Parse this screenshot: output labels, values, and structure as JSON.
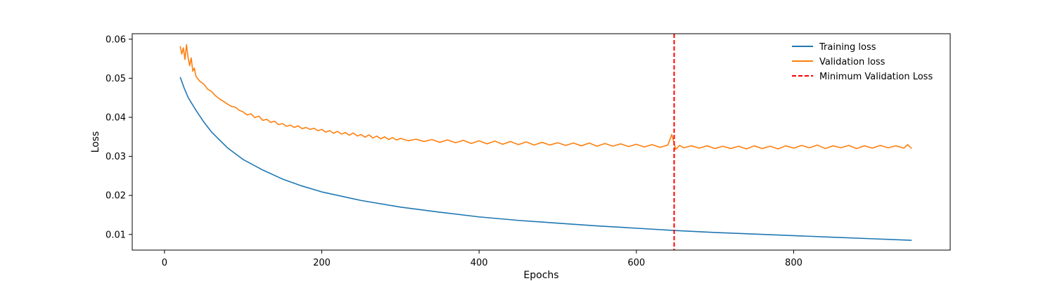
{
  "chart_data": {
    "type": "line",
    "title": "",
    "xlabel": "Epochs",
    "ylabel": "Loss",
    "xlim": [
      -41,
      999
    ],
    "ylim": [
      0.006,
      0.0614
    ],
    "xticks": [
      0,
      200,
      400,
      600,
      800
    ],
    "yticks": [
      0.01,
      0.02,
      0.03,
      0.04,
      0.05,
      0.06
    ],
    "ytick_labels": [
      "0.01",
      "0.02",
      "0.03",
      "0.04",
      "0.05",
      "0.06"
    ],
    "legend_position": "top-right",
    "series": [
      {
        "name": "Training loss",
        "color": "#1f77b4",
        "style": "solid",
        "x": [
          20,
          25,
          30,
          40,
          50,
          60,
          80,
          100,
          125,
          150,
          175,
          200,
          250,
          300,
          350,
          400,
          450,
          500,
          550,
          600,
          650,
          700,
          750,
          800,
          850,
          900,
          950
        ],
        "y": [
          0.0503,
          0.0475,
          0.0451,
          0.0418,
          0.0388,
          0.0362,
          0.0322,
          0.0292,
          0.0265,
          0.0242,
          0.0224,
          0.0209,
          0.0187,
          0.017,
          0.0157,
          0.0145,
          0.0136,
          0.0129,
          0.0122,
          0.0116,
          0.011,
          0.0105,
          0.0101,
          0.0097,
          0.0093,
          0.0089,
          0.0085
        ]
      },
      {
        "name": "Validation loss",
        "color": "#ff7f0e",
        "style": "solid",
        "x": [
          20,
          22,
          24,
          26,
          28,
          30,
          32,
          34,
          36,
          38,
          40,
          45,
          50,
          55,
          60,
          65,
          70,
          75,
          80,
          85,
          90,
          95,
          100,
          105,
          110,
          115,
          120,
          125,
          130,
          135,
          140,
          145,
          150,
          155,
          160,
          165,
          170,
          175,
          180,
          185,
          190,
          195,
          200,
          205,
          210,
          215,
          220,
          225,
          230,
          235,
          240,
          245,
          250,
          255,
          260,
          265,
          270,
          275,
          280,
          285,
          290,
          295,
          300,
          310,
          320,
          330,
          340,
          350,
          360,
          370,
          380,
          390,
          400,
          410,
          420,
          430,
          440,
          450,
          460,
          470,
          480,
          490,
          500,
          510,
          520,
          530,
          540,
          550,
          560,
          570,
          580,
          590,
          600,
          610,
          620,
          630,
          640,
          645,
          650,
          655,
          660,
          670,
          680,
          690,
          700,
          710,
          720,
          730,
          740,
          750,
          760,
          770,
          780,
          790,
          800,
          810,
          820,
          830,
          840,
          850,
          860,
          870,
          880,
          890,
          900,
          910,
          920,
          930,
          940,
          945,
          950
        ],
        "y": [
          0.0582,
          0.0562,
          0.0578,
          0.0548,
          0.0586,
          0.0553,
          0.0532,
          0.0552,
          0.0518,
          0.0526,
          0.0505,
          0.0492,
          0.0485,
          0.0472,
          0.0466,
          0.0455,
          0.0447,
          0.0441,
          0.0434,
          0.0428,
          0.0426,
          0.0418,
          0.0414,
          0.0406,
          0.0409,
          0.0399,
          0.0403,
          0.0392,
          0.0395,
          0.0387,
          0.039,
          0.0381,
          0.0384,
          0.0377,
          0.038,
          0.0374,
          0.0378,
          0.0371,
          0.0374,
          0.0369,
          0.0372,
          0.0366,
          0.0369,
          0.0362,
          0.0366,
          0.0359,
          0.0364,
          0.0357,
          0.0361,
          0.0354,
          0.036,
          0.0352,
          0.0356,
          0.0349,
          0.0355,
          0.0347,
          0.0352,
          0.0345,
          0.035,
          0.0343,
          0.0348,
          0.0342,
          0.0346,
          0.034,
          0.0344,
          0.0338,
          0.0343,
          0.0336,
          0.0342,
          0.0335,
          0.0341,
          0.0333,
          0.034,
          0.0332,
          0.0339,
          0.0331,
          0.0338,
          0.033,
          0.0337,
          0.0329,
          0.0336,
          0.0329,
          0.0335,
          0.0328,
          0.0334,
          0.0327,
          0.0334,
          0.0326,
          0.0333,
          0.0326,
          0.0332,
          0.0325,
          0.0331,
          0.0324,
          0.033,
          0.0323,
          0.0329,
          0.0356,
          0.0318,
          0.0328,
          0.0322,
          0.0327,
          0.0321,
          0.0327,
          0.032,
          0.0326,
          0.032,
          0.0326,
          0.0319,
          0.0327,
          0.032,
          0.0326,
          0.0319,
          0.0327,
          0.0321,
          0.0328,
          0.0322,
          0.0329,
          0.032,
          0.0327,
          0.0322,
          0.0328,
          0.032,
          0.0327,
          0.0321,
          0.0328,
          0.0322,
          0.0327,
          0.0321,
          0.033,
          0.032
        ]
      },
      {
        "name": "Minimum Validation Loss",
        "color": "#ff0000",
        "style": "dashed",
        "x_value": 648
      }
    ]
  }
}
